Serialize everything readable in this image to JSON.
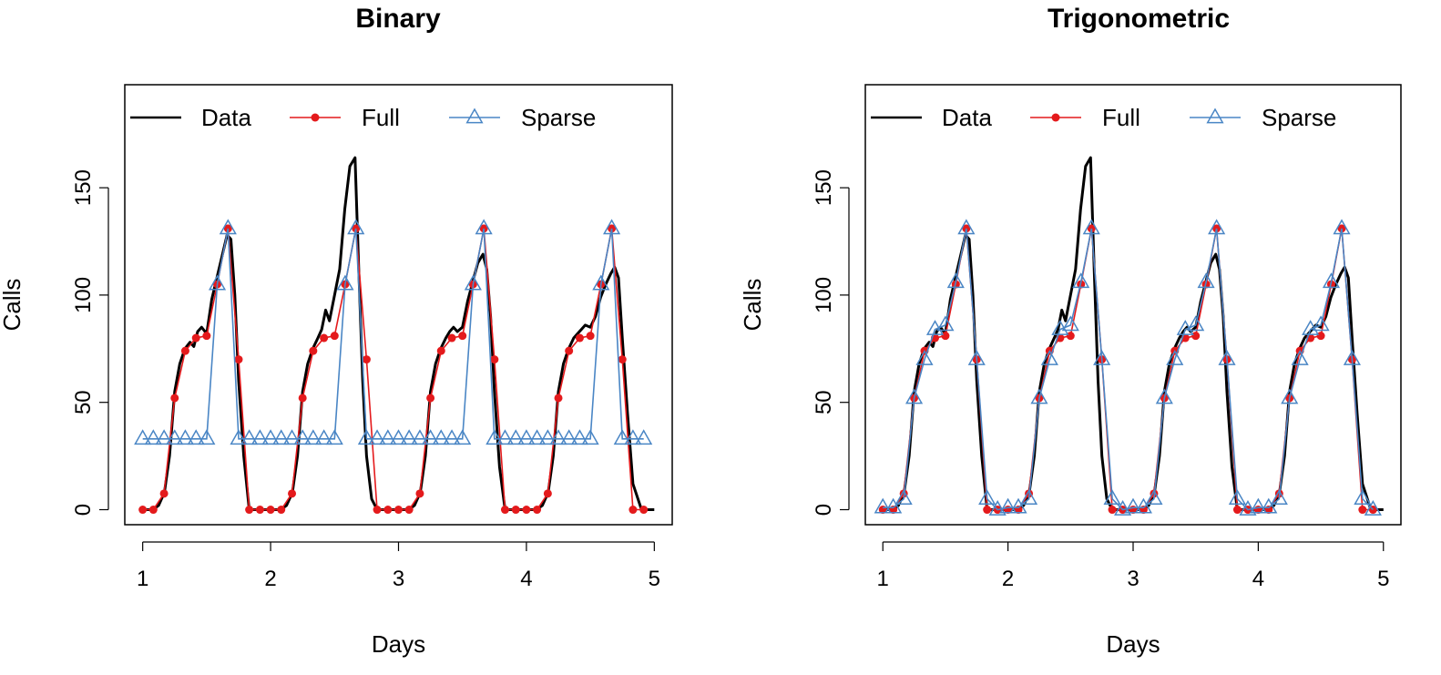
{
  "chart_data": [
    {
      "type": "line",
      "title": "Binary",
      "xlabel": "Days",
      "ylabel": "Calls",
      "xlim": [
        0.86,
        5.14
      ],
      "ylim": [
        -7,
        198
      ],
      "xticks": [
        1,
        2,
        3,
        4,
        5
      ],
      "yticks": [
        0,
        50,
        100,
        150
      ],
      "grid": false,
      "legend": {
        "placement": "top-left",
        "entries": [
          "Data",
          "Full",
          "Sparse"
        ]
      },
      "colors": {
        "Data": "#000000",
        "Full": "#e41a1c",
        "Sparse": "#4a86c5"
      },
      "series": [
        {
          "name": "Data",
          "x": [
            1,
            1.08,
            1.125,
            1.17,
            1.21,
            1.25,
            1.29,
            1.33,
            1.37,
            1.4,
            1.43,
            1.46,
            1.5,
            1.54,
            1.58,
            1.62,
            1.66,
            1.69,
            1.72,
            1.75,
            1.79,
            1.833,
            1.9,
            2,
            2.08,
            2.125,
            2.17,
            2.21,
            2.25,
            2.29,
            2.33,
            2.37,
            2.4,
            2.43,
            2.46,
            2.5,
            2.54,
            2.58,
            2.62,
            2.66,
            2.69,
            2.72,
            2.75,
            2.79,
            2.833,
            2.9,
            3,
            3.08,
            3.125,
            3.17,
            3.21,
            3.25,
            3.29,
            3.33,
            3.37,
            3.4,
            3.43,
            3.46,
            3.5,
            3.54,
            3.58,
            3.62,
            3.66,
            3.69,
            3.72,
            3.75,
            3.79,
            3.833,
            3.9,
            4,
            4.08,
            4.125,
            4.17,
            4.21,
            4.25,
            4.29,
            4.33,
            4.37,
            4.4,
            4.43,
            4.46,
            4.5,
            4.54,
            4.58,
            4.62,
            4.66,
            4.69,
            4.72,
            4.75,
            4.79,
            4.833,
            4.9,
            5
          ],
          "values": [
            0,
            0,
            2,
            8,
            25,
            55,
            68,
            75,
            78,
            76,
            83,
            85,
            82,
            98,
            108,
            118,
            128,
            126,
            100,
            60,
            25,
            0,
            0,
            0,
            0,
            2,
            8,
            25,
            55,
            68,
            75,
            80,
            84,
            93,
            88,
            100,
            112,
            140,
            160,
            164,
            110,
            60,
            25,
            5,
            0,
            0,
            0,
            0,
            2,
            8,
            25,
            55,
            68,
            75,
            80,
            83,
            85,
            83,
            85,
            97,
            106,
            115,
            119,
            112,
            90,
            55,
            20,
            0,
            0,
            0,
            0,
            2,
            8,
            25,
            55,
            68,
            75,
            80,
            82,
            84,
            86,
            85,
            90,
            99,
            105,
            110,
            113,
            108,
            80,
            45,
            12,
            0,
            0
          ]
        },
        {
          "name": "Full",
          "x": [
            1,
            1.083,
            1.167,
            1.25,
            1.333,
            1.417,
            1.5,
            1.583,
            1.667,
            1.75,
            1.833,
            1.917,
            2,
            2.083,
            2.167,
            2.25,
            2.333,
            2.417,
            2.5,
            2.583,
            2.667,
            2.75,
            2.833,
            2.917,
            3,
            3.083,
            3.167,
            3.25,
            3.333,
            3.417,
            3.5,
            3.583,
            3.667,
            3.75,
            3.833,
            3.917,
            4,
            4.083,
            4.167,
            4.25,
            4.333,
            4.417,
            4.5,
            4.583,
            4.667,
            4.75,
            4.833,
            4.917
          ],
          "values": [
            0,
            0,
            7.5,
            52,
            74,
            80,
            81,
            105,
            131,
            70,
            0,
            0,
            0,
            0,
            7.5,
            52,
            74,
            80,
            81,
            105,
            131,
            70,
            0,
            0,
            0,
            0,
            7.5,
            52,
            74,
            80,
            81,
            105,
            131,
            70,
            0,
            0,
            0,
            0,
            7.5,
            52,
            74,
            80,
            81,
            105,
            131,
            70,
            0,
            0
          ]
        },
        {
          "name": "Sparse",
          "x": [
            1,
            1.083,
            1.167,
            1.25,
            1.333,
            1.417,
            1.5,
            1.583,
            1.667,
            1.75,
            1.833,
            1.917,
            2,
            2.083,
            2.167,
            2.25,
            2.333,
            2.417,
            2.5,
            2.583,
            2.667,
            2.75,
            2.833,
            2.917,
            3,
            3.083,
            3.167,
            3.25,
            3.333,
            3.417,
            3.5,
            3.583,
            3.667,
            3.75,
            3.833,
            3.917,
            4,
            4.083,
            4.167,
            4.25,
            4.333,
            4.417,
            4.5,
            4.583,
            4.667,
            4.75,
            4.833,
            4.917
          ],
          "values": [
            33,
            33,
            33,
            33,
            33,
            33,
            33,
            105,
            131,
            33,
            33,
            33,
            33,
            33,
            33,
            33,
            33,
            33,
            33,
            105,
            131,
            33,
            33,
            33,
            33,
            33,
            33,
            33,
            33,
            33,
            33,
            105,
            131,
            33,
            33,
            33,
            33,
            33,
            33,
            33,
            33,
            33,
            33,
            105,
            131,
            33,
            33,
            33
          ]
        }
      ]
    },
    {
      "type": "line",
      "title": "Trigonometric",
      "xlabel": "Days",
      "ylabel": "Calls",
      "xlim": [
        0.86,
        5.14
      ],
      "ylim": [
        -7,
        198
      ],
      "xticks": [
        1,
        2,
        3,
        4,
        5
      ],
      "yticks": [
        0,
        50,
        100,
        150
      ],
      "grid": false,
      "legend": {
        "placement": "top-left",
        "entries": [
          "Data",
          "Full",
          "Sparse"
        ]
      },
      "colors": {
        "Data": "#000000",
        "Full": "#e41a1c",
        "Sparse": "#4a86c5"
      },
      "series": [
        {
          "name": "Data",
          "x": [
            1,
            1.08,
            1.125,
            1.17,
            1.21,
            1.25,
            1.29,
            1.33,
            1.37,
            1.4,
            1.43,
            1.46,
            1.5,
            1.54,
            1.58,
            1.62,
            1.66,
            1.69,
            1.72,
            1.75,
            1.79,
            1.833,
            1.9,
            2,
            2.08,
            2.125,
            2.17,
            2.21,
            2.25,
            2.29,
            2.33,
            2.37,
            2.4,
            2.43,
            2.46,
            2.5,
            2.54,
            2.58,
            2.62,
            2.66,
            2.69,
            2.72,
            2.75,
            2.79,
            2.833,
            2.9,
            3,
            3.08,
            3.125,
            3.17,
            3.21,
            3.25,
            3.29,
            3.33,
            3.37,
            3.4,
            3.43,
            3.46,
            3.5,
            3.54,
            3.58,
            3.62,
            3.66,
            3.69,
            3.72,
            3.75,
            3.79,
            3.833,
            3.9,
            4,
            4.08,
            4.125,
            4.17,
            4.21,
            4.25,
            4.29,
            4.33,
            4.37,
            4.4,
            4.43,
            4.46,
            4.5,
            4.54,
            4.58,
            4.62,
            4.66,
            4.69,
            4.72,
            4.75,
            4.79,
            4.833,
            4.9,
            5
          ],
          "values": [
            0,
            0,
            2,
            8,
            25,
            55,
            68,
            75,
            78,
            76,
            83,
            85,
            82,
            98,
            108,
            118,
            128,
            126,
            100,
            60,
            25,
            0,
            0,
            0,
            0,
            2,
            8,
            25,
            55,
            68,
            75,
            80,
            84,
            93,
            88,
            100,
            112,
            140,
            160,
            164,
            110,
            60,
            25,
            5,
            0,
            0,
            0,
            0,
            2,
            8,
            25,
            55,
            68,
            75,
            80,
            83,
            85,
            83,
            85,
            97,
            106,
            115,
            119,
            112,
            90,
            55,
            20,
            0,
            0,
            0,
            0,
            2,
            8,
            25,
            55,
            68,
            75,
            80,
            82,
            84,
            86,
            85,
            90,
            99,
            105,
            110,
            113,
            108,
            80,
            45,
            12,
            0,
            0
          ]
        },
        {
          "name": "Full",
          "x": [
            1,
            1.083,
            1.167,
            1.25,
            1.333,
            1.417,
            1.5,
            1.583,
            1.667,
            1.75,
            1.833,
            1.917,
            2,
            2.083,
            2.167,
            2.25,
            2.333,
            2.417,
            2.5,
            2.583,
            2.667,
            2.75,
            2.833,
            2.917,
            3,
            3.083,
            3.167,
            3.25,
            3.333,
            3.417,
            3.5,
            3.583,
            3.667,
            3.75,
            3.833,
            3.917,
            4,
            4.083,
            4.167,
            4.25,
            4.333,
            4.417,
            4.5,
            4.583,
            4.667,
            4.75,
            4.833,
            4.917
          ],
          "values": [
            0,
            0,
            7.5,
            52,
            74,
            80,
            81,
            105,
            131,
            70,
            0,
            0,
            0,
            0,
            7.5,
            52,
            74,
            80,
            81,
            105,
            131,
            70,
            0,
            0,
            0,
            0,
            7.5,
            52,
            74,
            80,
            81,
            105,
            131,
            70,
            0,
            0,
            0,
            0,
            7.5,
            52,
            74,
            80,
            81,
            105,
            131,
            70,
            0,
            0
          ]
        },
        {
          "name": "Sparse",
          "x": [
            1,
            1.083,
            1.167,
            1.25,
            1.333,
            1.417,
            1.5,
            1.583,
            1.667,
            1.75,
            1.833,
            1.917,
            2,
            2.083,
            2.167,
            2.25,
            2.333,
            2.417,
            2.5,
            2.583,
            2.667,
            2.75,
            2.833,
            2.917,
            3,
            3.083,
            3.167,
            3.25,
            3.333,
            3.417,
            3.5,
            3.583,
            3.667,
            3.75,
            3.833,
            3.917,
            4,
            4.083,
            4.167,
            4.25,
            4.333,
            4.417,
            4.5,
            4.583,
            4.667,
            4.75,
            4.833,
            4.917
          ],
          "values": [
            1,
            1,
            5,
            52,
            70,
            84,
            86,
            106,
            131,
            70,
            5,
            0,
            1,
            1,
            5,
            52,
            70,
            84,
            86,
            106,
            131,
            70,
            5,
            0,
            1,
            1,
            5,
            52,
            70,
            84,
            86,
            106,
            131,
            70,
            5,
            0,
            1,
            1,
            5,
            52,
            70,
            84,
            86,
            106,
            131,
            70,
            5,
            0
          ]
        }
      ]
    }
  ]
}
